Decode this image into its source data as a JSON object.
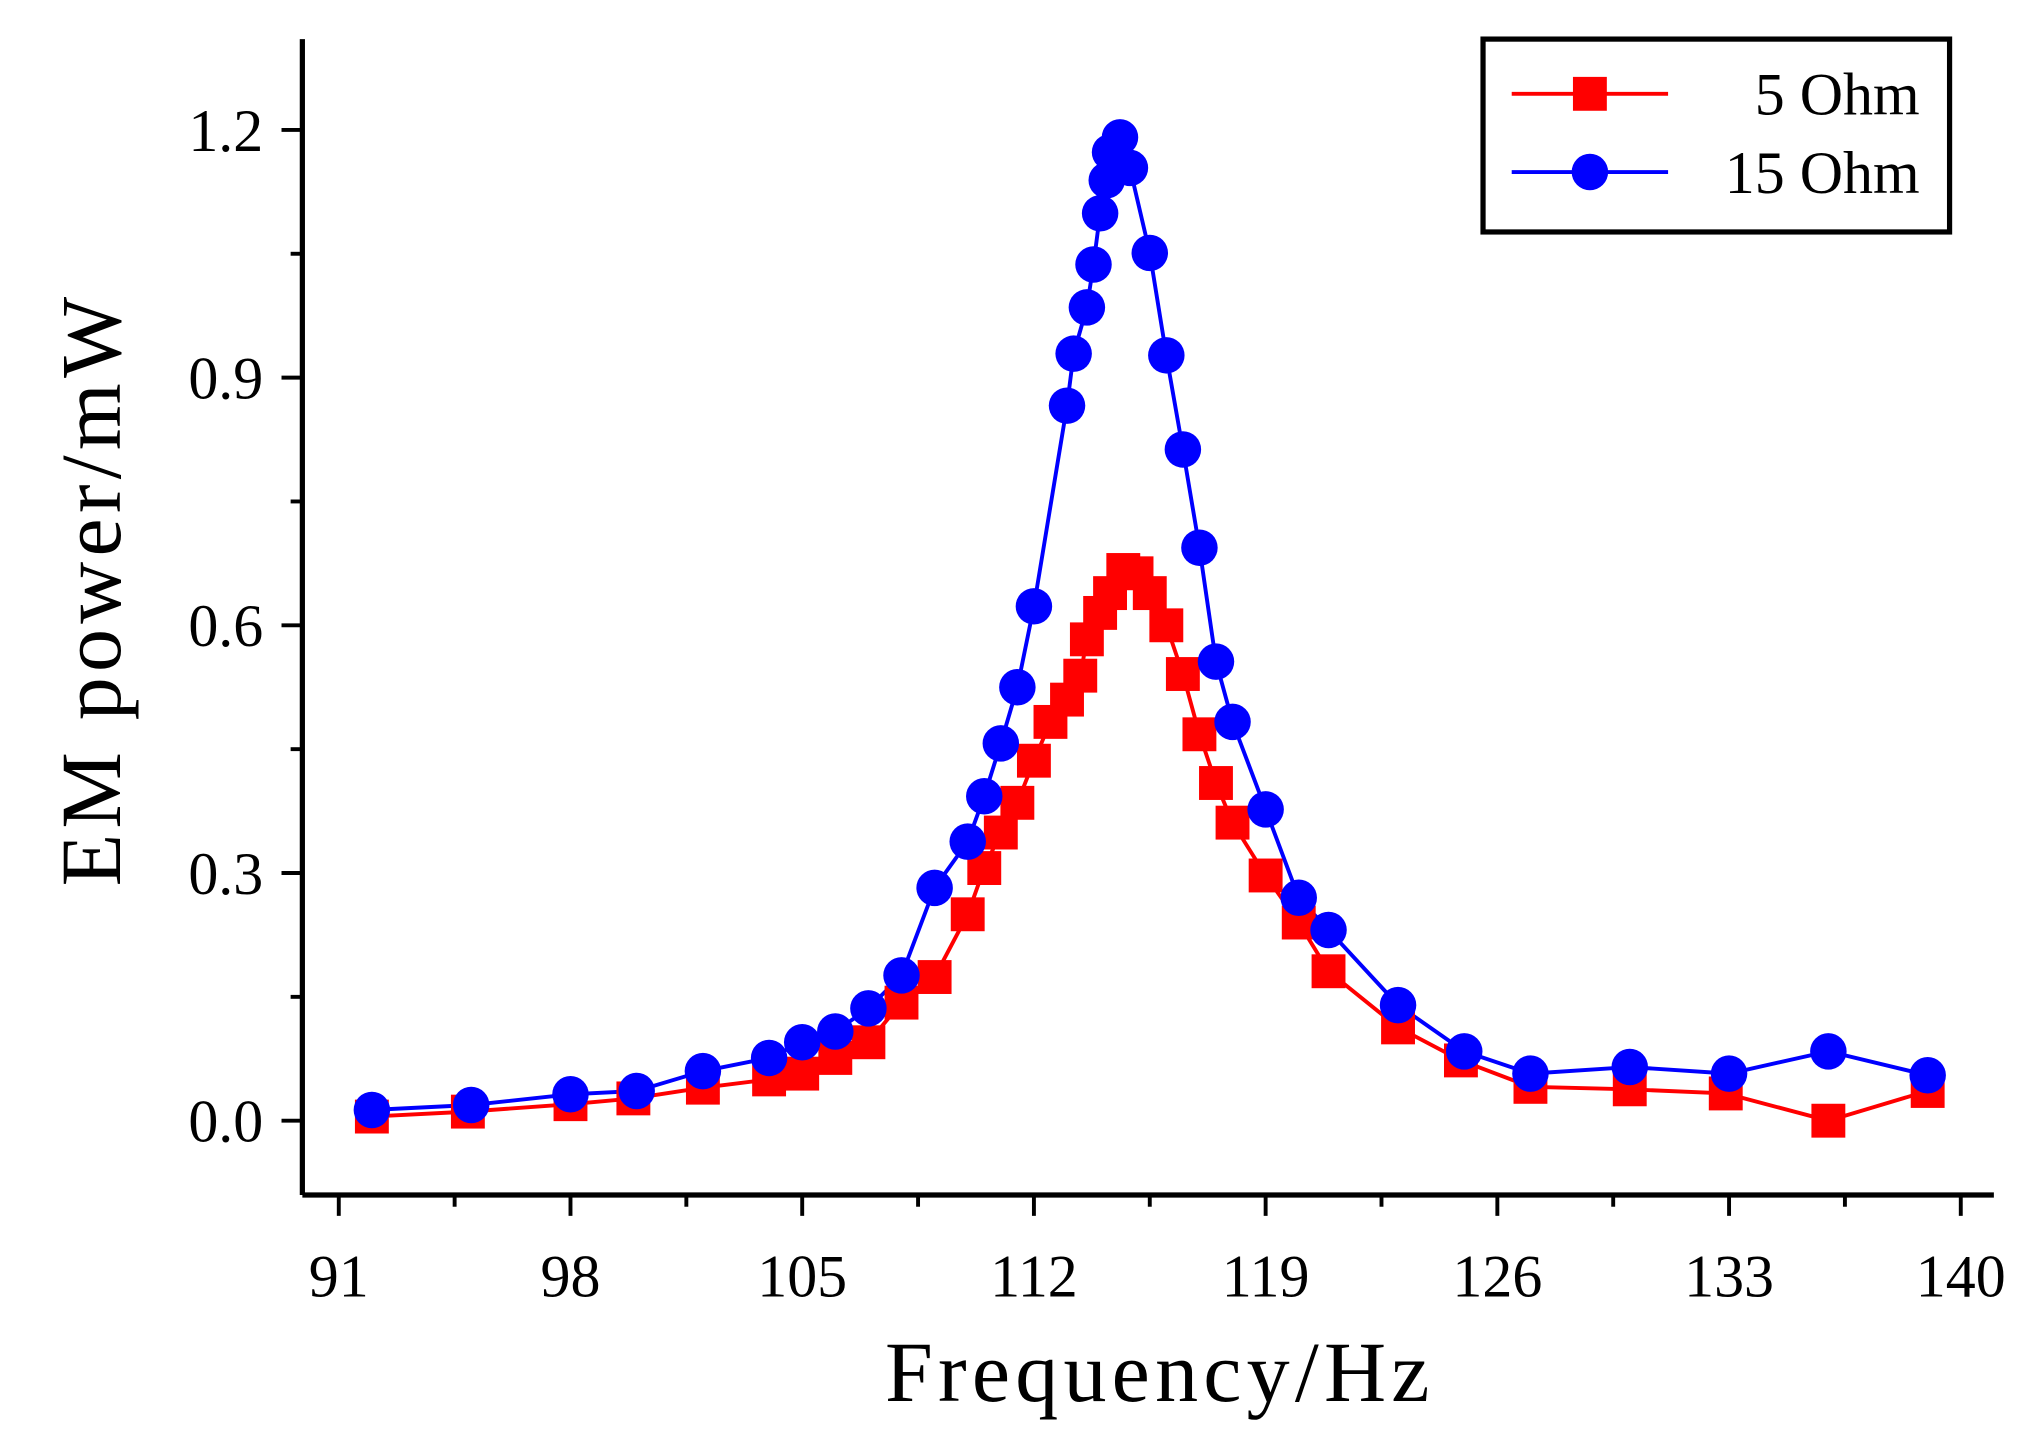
{
  "chart_data": {
    "type": "line",
    "xlabel": "Frequency/Hz",
    "ylabel": "EM power/mW",
    "xlim": [
      89.9,
      141
    ],
    "xticks": [
      91,
      98,
      105,
      112,
      119,
      126,
      133,
      140
    ],
    "ylim": [
      -0.09,
      1.31
    ],
    "yticks": [
      {
        "value": 0,
        "label": "0.0"
      },
      0.3,
      0.6,
      0.9,
      1.2
    ],
    "legend": "upper right",
    "series": [
      {
        "name": "5 Ohm",
        "color": "#ff0000",
        "marker": "square",
        "x": [
          92,
          94.9,
          98,
          99.9,
          102,
          104,
          105,
          106,
          107,
          108,
          109,
          110,
          110.5,
          111,
          111.5,
          112,
          112.5,
          113,
          113.4,
          113.6,
          114,
          114.3,
          114.7,
          115.1,
          115.5,
          116,
          116.5,
          117,
          117.5,
          118,
          119,
          120,
          120.9,
          123,
          124.9,
          127,
          130,
          132.9,
          136,
          139
        ],
        "values": [
          0.005,
          0.011,
          0.02,
          0.027,
          0.04,
          0.05,
          0.057,
          0.076,
          0.095,
          0.143,
          0.174,
          0.25,
          0.306,
          0.349,
          0.385,
          0.436,
          0.483,
          0.51,
          0.539,
          0.583,
          0.615,
          0.639,
          0.667,
          0.663,
          0.639,
          0.6,
          0.541,
          0.468,
          0.409,
          0.361,
          0.297,
          0.24,
          0.181,
          0.113,
          0.073,
          0.041,
          0.038,
          0.033,
          0.0,
          0.036
        ]
      },
      {
        "name": "15 Ohm",
        "color": "#0000ff",
        "marker": "circle",
        "x": [
          92,
          95,
          98,
          100,
          102,
          104,
          105,
          106,
          107,
          108,
          109,
          110,
          110.5,
          111,
          111.5,
          112,
          113,
          113.2,
          113.6,
          113.8,
          114,
          114.2,
          114.3,
          114.6,
          114.9,
          115.5,
          116,
          116.5,
          117,
          117.5,
          118,
          119,
          120,
          120.9,
          123,
          125,
          127,
          130,
          133,
          136,
          139
        ],
        "values": [
          0.013,
          0.019,
          0.032,
          0.036,
          0.06,
          0.076,
          0.095,
          0.108,
          0.136,
          0.176,
          0.282,
          0.338,
          0.393,
          0.457,
          0.525,
          0.623,
          0.866,
          0.929,
          0.985,
          1.037,
          1.099,
          1.139,
          1.173,
          1.191,
          1.154,
          1.051,
          0.927,
          0.813,
          0.694,
          0.556,
          0.483,
          0.377,
          0.27,
          0.231,
          0.14,
          0.084,
          0.057,
          0.065,
          0.057,
          0.084,
          0.055
        ]
      }
    ]
  }
}
